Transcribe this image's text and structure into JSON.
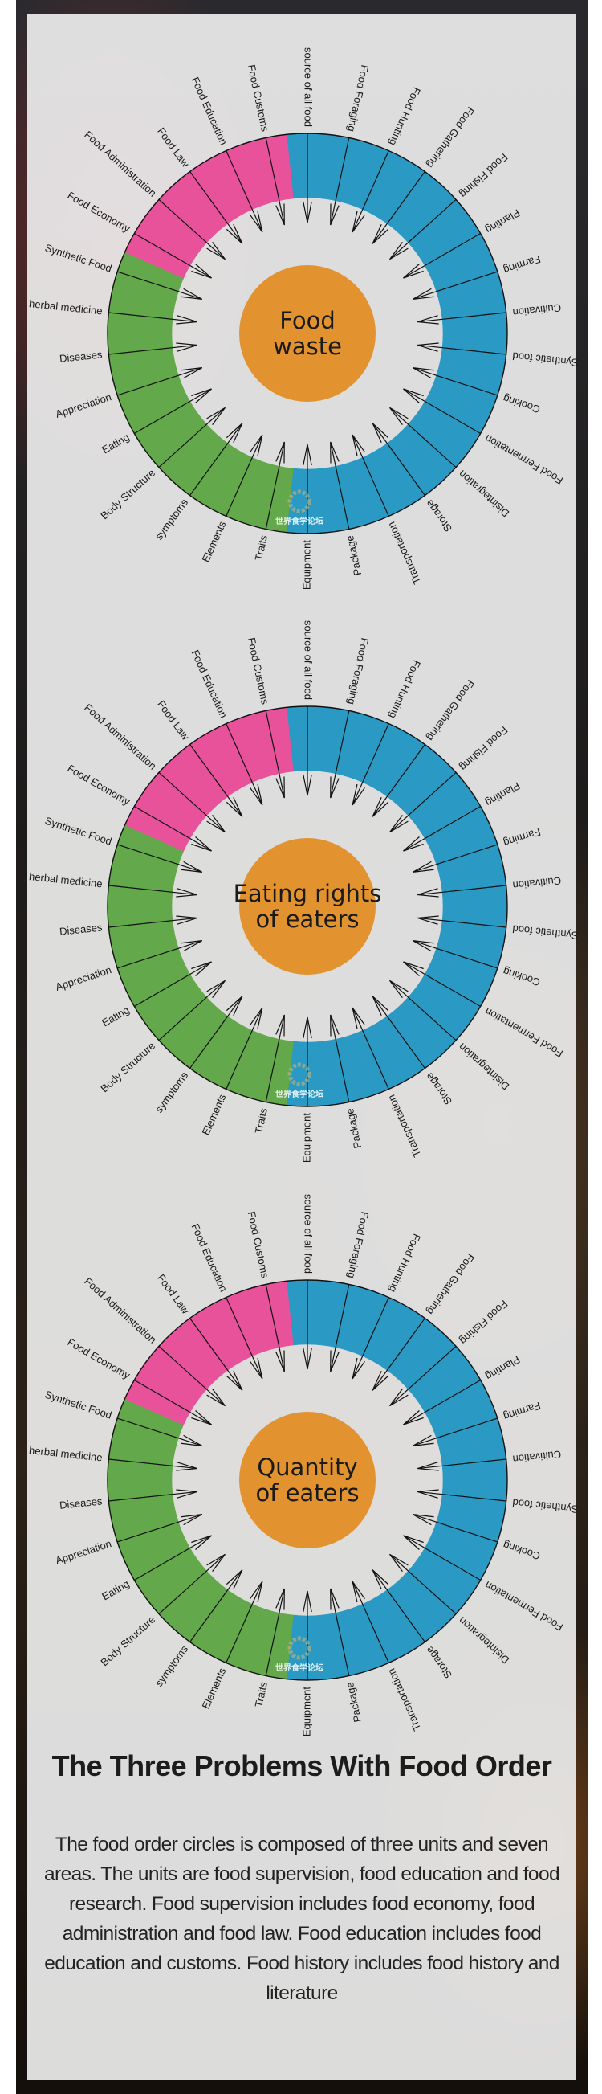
{
  "colors": {
    "research": "#2a9ac4",
    "education": "#63a84a",
    "supervision": "#e8529a",
    "center": "#e2932f"
  },
  "wheel_labels": [
    "The source of all food",
    "Food Foraging",
    "Food Hunting",
    "Food Gathering",
    "Food Fishing",
    "Planting",
    "Farming",
    "Cultivation",
    "Synthetic food",
    "Cooking",
    "Food Fermentation",
    "Disintegration",
    "Storage",
    "Transportation",
    "Package",
    "Equipment",
    "Traits",
    "Elements",
    "symptoms",
    "Body Structure",
    "Eating",
    "Appreciation",
    "Diseases",
    "herbal medicine",
    "Synthetic Food",
    "Food Economy",
    "Food Administration",
    "Food Law",
    "Food Education",
    "Food Customs"
  ],
  "segment_groups": [
    {
      "color_key": "research",
      "count": 16
    },
    {
      "color_key": "education",
      "count": 9
    },
    {
      "color_key": "supervision",
      "count": 5
    }
  ],
  "circles": [
    {
      "center_lines": [
        "Food",
        "waste"
      ]
    },
    {
      "center_lines": [
        "Eating rights",
        "of eaters"
      ]
    },
    {
      "center_lines": [
        "Quantity",
        "of eaters"
      ]
    }
  ],
  "watermark": "世界食学论坛",
  "footer": {
    "title": "The Three Problems With Food Order",
    "body": "The food order circles is composed of three units and seven areas. The units are food supervision, food education and food research. Food supervision includes food economy, food administration and food law. Food education includes food education and customs. Food history includes food history and literature"
  }
}
